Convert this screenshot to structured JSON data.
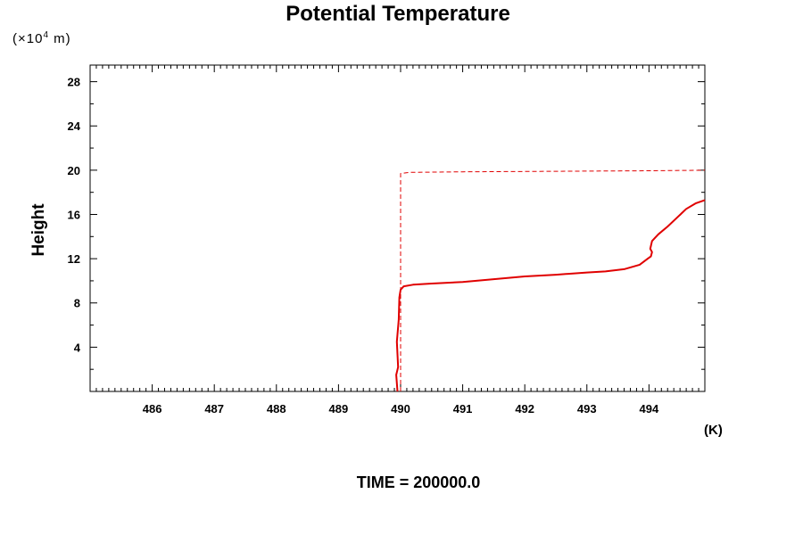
{
  "chart_data": {
    "type": "line",
    "title": "Potential Temperature",
    "ylabel": "Height",
    "yunit": {
      "prefix": "(×10",
      "exp": "4",
      "suffix": " m)"
    },
    "xunit": "(K)",
    "footer": "TIME = 200000.0",
    "xlim": [
      485.0,
      494.9
    ],
    "ylim": [
      0,
      29.5
    ],
    "x_ticks": [
      486,
      487,
      488,
      489,
      490,
      491,
      492,
      493,
      494
    ],
    "y_ticks": [
      4,
      8,
      12,
      16,
      20,
      24,
      28
    ],
    "grid": false,
    "series": [
      {
        "style": "solid",
        "color": "#e00000",
        "x": [
          489.95,
          489.93,
          489.96,
          489.94,
          489.97,
          489.98,
          490.0,
          490.05,
          490.2,
          490.5,
          491.0,
          491.5,
          492.0,
          492.5,
          493.0,
          493.3,
          493.6,
          493.85,
          493.98,
          494.03,
          494.05,
          494.02,
          494.05,
          494.15,
          494.3,
          494.45,
          494.6,
          494.75,
          494.9
        ],
        "y": [
          0,
          1.5,
          2.2,
          4.5,
          6.5,
          8.5,
          9.2,
          9.5,
          9.65,
          9.75,
          9.9,
          10.15,
          10.4,
          10.55,
          10.75,
          10.85,
          11.05,
          11.45,
          12.0,
          12.2,
          12.6,
          12.9,
          13.6,
          14.2,
          14.9,
          15.7,
          16.5,
          17.0,
          17.3
        ]
      },
      {
        "style": "dashed",
        "color": "#e00000",
        "x": [
          490.0,
          490.0,
          490.0,
          490.15,
          491.0,
          492.5,
          494.0,
          494.9
        ],
        "y": [
          0,
          10.0,
          19.7,
          19.8,
          19.85,
          19.9,
          19.95,
          20.0
        ]
      }
    ]
  }
}
